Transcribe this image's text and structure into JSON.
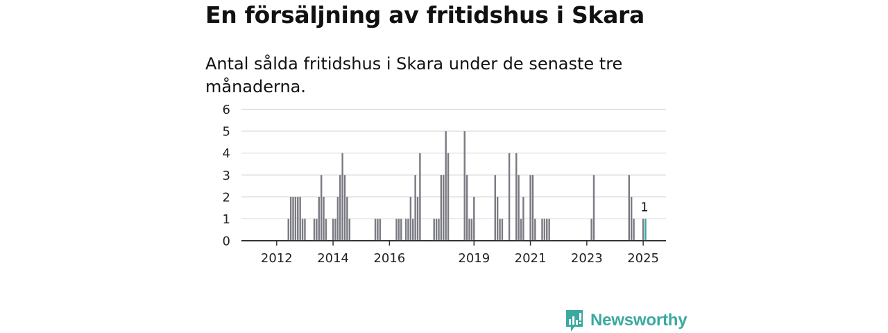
{
  "headline": "En försäljning av fritidshus i Skara",
  "subtitle": "Antal sålda fritidshus i Skara under de senaste tre månaderna.",
  "brand": {
    "name": "Newsworthy",
    "color": "#3aa99f"
  },
  "colors": {
    "bar": "#7b7b84",
    "highlight": "#3aa99f",
    "grid": "#d9d9d9",
    "axis": "#333333"
  },
  "chart_data": {
    "type": "bar",
    "x_unit": "month",
    "x_start": "2012-01",
    "x_end": "2025-08",
    "ylim": [
      0,
      6
    ],
    "yticks": [
      0,
      1,
      2,
      3,
      4,
      5,
      6
    ],
    "xtick_labels": [
      "2012",
      "2014",
      "2016",
      "2019",
      "2021",
      "2023",
      "2025"
    ],
    "xtick_positions": [
      "2012-07",
      "2014-07",
      "2016-07",
      "2019-07",
      "2021-07",
      "2023-07",
      "2025-07"
    ],
    "grid": true,
    "annotation": {
      "x": "2025-08",
      "text": "1"
    },
    "series": [
      {
        "months": [
          "2012-12",
          "2013-01",
          "2013-02",
          "2013-03",
          "2013-04",
          "2013-05",
          "2013-06",
          "2013-07",
          "2013-11",
          "2013-12",
          "2014-01",
          "2014-02",
          "2014-03",
          "2014-04",
          "2014-07",
          "2014-08",
          "2014-09",
          "2014-10",
          "2014-11",
          "2014-12",
          "2015-01",
          "2015-02",
          "2016-01",
          "2016-02",
          "2016-03",
          "2016-10",
          "2016-11",
          "2016-12",
          "2017-02",
          "2017-03",
          "2017-04",
          "2017-05",
          "2017-06",
          "2017-07",
          "2017-08",
          "2018-02",
          "2018-03",
          "2018-04",
          "2018-05",
          "2018-06",
          "2018-07",
          "2018-08",
          "2019-03",
          "2019-04",
          "2019-05",
          "2019-06",
          "2019-07",
          "2020-04",
          "2020-05",
          "2020-06",
          "2020-07",
          "2020-10",
          "2021-01",
          "2021-02",
          "2021-03",
          "2021-04",
          "2021-07",
          "2021-08",
          "2021-09",
          "2021-12",
          "2022-01",
          "2022-02",
          "2022-03",
          "2023-09",
          "2023-10",
          "2025-01",
          "2025-02",
          "2025-03",
          "2025-07",
          "2025-08"
        ],
        "values": [
          1,
          2,
          2,
          2,
          2,
          2,
          1,
          1,
          1,
          1,
          2,
          3,
          2,
          1,
          1,
          1,
          2,
          3,
          4,
          3,
          2,
          1,
          1,
          1,
          1,
          1,
          1,
          1,
          1,
          1,
          2,
          1,
          3,
          2,
          4,
          1,
          1,
          1,
          3,
          3,
          5,
          4,
          5,
          3,
          1,
          1,
          2,
          3,
          2,
          1,
          1,
          4,
          4,
          3,
          1,
          2,
          3,
          3,
          1,
          1,
          1,
          1,
          1,
          1,
          3,
          3,
          2,
          1,
          1,
          1
        ]
      }
    ]
  }
}
